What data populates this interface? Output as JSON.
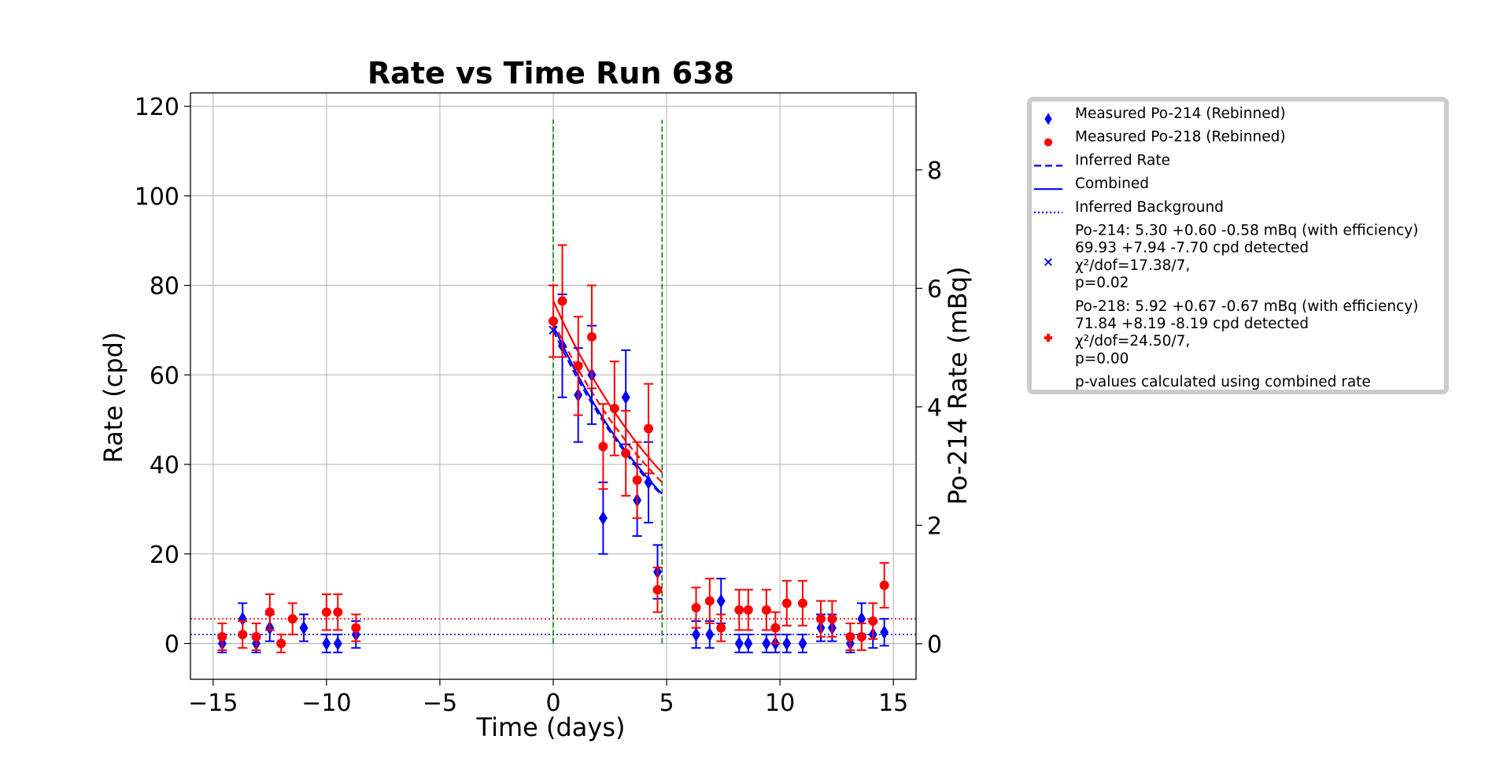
{
  "chart_data": {
    "type": "scatter",
    "title": "Rate vs Time Run 638",
    "xlabel": "Time (days)",
    "ylabel": "Rate (cpd)",
    "y2label": "Po-214 Rate (mBq)",
    "xlim": [
      -16,
      16
    ],
    "ylim": [
      -8,
      123
    ],
    "y2lim": [
      -0.6,
      9.3
    ],
    "xticks": [
      -15,
      -10,
      -5,
      0,
      5,
      10,
      15
    ],
    "xtick_labels": [
      "−15",
      "−10",
      "−5",
      "0",
      "5",
      "10",
      "15"
    ],
    "yticks": [
      0,
      20,
      40,
      60,
      80,
      100,
      120
    ],
    "ytick_labels": [
      "0",
      "20",
      "40",
      "60",
      "80",
      "100",
      "120"
    ],
    "y2ticks": [
      0,
      2,
      4,
      6,
      8
    ],
    "y2tick_labels": [
      "0",
      "2",
      "4",
      "6",
      "8"
    ],
    "grid": true,
    "legend_position": "outside-right",
    "colors": {
      "po214": "#0000ff",
      "po218": "#ff0000",
      "vline": "#008000",
      "grid": "#b0b0b0"
    },
    "vlines": [
      0,
      4.8
    ],
    "vline_range": [
      0,
      117
    ],
    "series": [
      {
        "name": "Measured Po-214 (Rebinned)",
        "color": "#0000ff",
        "marker": "diamond",
        "points": [
          {
            "x": -14.6,
            "y": 0,
            "err": 2
          },
          {
            "x": -13.7,
            "y": 5.5,
            "err": 3.5
          },
          {
            "x": -13.1,
            "y": 0,
            "err": 2
          },
          {
            "x": -12.5,
            "y": 3.5,
            "err": 3
          },
          {
            "x": -11.0,
            "y": 3.5,
            "err": 3
          },
          {
            "x": -10.0,
            "y": 0,
            "err": 2
          },
          {
            "x": -9.5,
            "y": 0,
            "err": 2
          },
          {
            "x": -8.7,
            "y": 2,
            "err": 3
          },
          {
            "x": 0.4,
            "y": 66.5,
            "err": 11.5
          },
          {
            "x": 1.1,
            "y": 55.5,
            "err": 10.5
          },
          {
            "x": 1.7,
            "y": 60,
            "err": 11
          },
          {
            "x": 2.2,
            "y": 28,
            "err": 8
          },
          {
            "x": 3.2,
            "y": 55,
            "err": 10.5
          },
          {
            "x": 3.7,
            "y": 32,
            "err": 8
          },
          {
            "x": 4.2,
            "y": 36,
            "err": 9
          },
          {
            "x": 4.6,
            "y": 16,
            "err": 6
          },
          {
            "x": 6.3,
            "y": 2,
            "err": 3
          },
          {
            "x": 6.9,
            "y": 2,
            "err": 3
          },
          {
            "x": 7.4,
            "y": 9.5,
            "err": 5
          },
          {
            "x": 8.2,
            "y": 0,
            "err": 2
          },
          {
            "x": 8.6,
            "y": 0,
            "err": 2
          },
          {
            "x": 9.4,
            "y": 0,
            "err": 2
          },
          {
            "x": 9.8,
            "y": 0,
            "err": 2
          },
          {
            "x": 10.3,
            "y": 0,
            "err": 2
          },
          {
            "x": 11.0,
            "y": 0,
            "err": 2
          },
          {
            "x": 11.8,
            "y": 3.5,
            "err": 3
          },
          {
            "x": 12.3,
            "y": 3.5,
            "err": 3
          },
          {
            "x": 13.1,
            "y": 0,
            "err": 2
          },
          {
            "x": 13.6,
            "y": 5.5,
            "err": 3.5
          },
          {
            "x": 14.1,
            "y": 2,
            "err": 3
          },
          {
            "x": 14.6,
            "y": 2.5,
            "err": 3
          }
        ]
      },
      {
        "name": "Measured Po-218 (Rebinned)",
        "color": "#ff0000",
        "marker": "circle",
        "points": [
          {
            "x": -14.6,
            "y": 1.5,
            "err": 3
          },
          {
            "x": -13.7,
            "y": 2,
            "err": 3
          },
          {
            "x": -13.1,
            "y": 1.5,
            "err": 3
          },
          {
            "x": -12.5,
            "y": 7,
            "err": 4
          },
          {
            "x": -12.0,
            "y": 0,
            "err": 2
          },
          {
            "x": -11.5,
            "y": 5.5,
            "err": 3.5
          },
          {
            "x": -10.0,
            "y": 7,
            "err": 4
          },
          {
            "x": -9.5,
            "y": 7,
            "err": 4
          },
          {
            "x": -8.7,
            "y": 3.5,
            "err": 3
          },
          {
            "x": 0.0,
            "y": 72,
            "err": 8
          },
          {
            "x": 0.4,
            "y": 76.5,
            "err": 12.5
          },
          {
            "x": 1.1,
            "y": 62,
            "err": 11
          },
          {
            "x": 1.7,
            "y": 68.5,
            "err": 11.5
          },
          {
            "x": 2.2,
            "y": 44,
            "err": 9.5
          },
          {
            "x": 2.7,
            "y": 52.5,
            "err": 10.5
          },
          {
            "x": 3.2,
            "y": 42.5,
            "err": 9.5
          },
          {
            "x": 3.7,
            "y": 36.5,
            "err": 8.5
          },
          {
            "x": 4.2,
            "y": 48,
            "err": 10
          },
          {
            "x": 4.6,
            "y": 12,
            "err": 5
          },
          {
            "x": 6.3,
            "y": 8,
            "err": 4.5
          },
          {
            "x": 6.9,
            "y": 9.5,
            "err": 5
          },
          {
            "x": 7.4,
            "y": 3.5,
            "err": 3
          },
          {
            "x": 8.2,
            "y": 7.5,
            "err": 4.5
          },
          {
            "x": 8.6,
            "y": 7.5,
            "err": 4.5
          },
          {
            "x": 9.4,
            "y": 7.5,
            "err": 4.5
          },
          {
            "x": 9.8,
            "y": 3.5,
            "err": 3.5
          },
          {
            "x": 10.3,
            "y": 9,
            "err": 5
          },
          {
            "x": 11.0,
            "y": 9,
            "err": 5
          },
          {
            "x": 11.8,
            "y": 5.5,
            "err": 4
          },
          {
            "x": 12.3,
            "y": 5.5,
            "err": 4
          },
          {
            "x": 13.1,
            "y": 1.5,
            "err": 3
          },
          {
            "x": 13.6,
            "y": 1.5,
            "err": 3
          },
          {
            "x": 14.1,
            "y": 5,
            "err": 4
          },
          {
            "x": 14.6,
            "y": 13,
            "err": 5
          }
        ]
      }
    ],
    "fits": [
      {
        "name": "Inferred Rate",
        "series": "Po-214",
        "color": "#0000ff",
        "style": "dashed",
        "x": [
          0,
          0.5,
          1,
          1.5,
          2,
          2.5,
          3,
          3.5,
          4,
          4.5,
          4.8
        ],
        "y": [
          69.9,
          64.7,
          59.8,
          55.3,
          51.2,
          47.3,
          43.8,
          40.5,
          37.4,
          34.6,
          33.1
        ]
      },
      {
        "name": "Combined",
        "series": "Po-214",
        "color": "#0000ff",
        "style": "solid",
        "x": [
          0,
          0.5,
          1,
          1.5,
          2,
          2.5,
          3,
          3.5,
          4,
          4.5,
          4.8
        ],
        "y": [
          71,
          65.7,
          60.7,
          56.1,
          51.9,
          47.9,
          44.3,
          41,
          37.9,
          35,
          33.4
        ]
      },
      {
        "name": "Inferred Rate",
        "series": "Po-218",
        "color": "#ff0000",
        "style": "dashed",
        "x": [
          0,
          0.5,
          1,
          1.5,
          2,
          2.5,
          3,
          3.5,
          4,
          4.5,
          4.8
        ],
        "y": [
          71.8,
          66.8,
          62.1,
          57.8,
          53.8,
          50,
          46.6,
          43.3,
          40.3,
          37.5,
          36
        ]
      },
      {
        "name": "Combined",
        "series": "Po-218",
        "color": "#ff0000",
        "style": "solid",
        "x": [
          0,
          0.5,
          1,
          1.5,
          2,
          2.5,
          3,
          3.5,
          4,
          4.5,
          4.8
        ],
        "y": [
          76.5,
          71.1,
          66.1,
          61.5,
          57.2,
          53.2,
          49.5,
          46,
          42.8,
          39.8,
          38.2
        ]
      }
    ],
    "backgrounds": [
      {
        "series": "Po-214",
        "color": "#0000ff",
        "style": "dotted",
        "y": 2
      },
      {
        "series": "Po-218",
        "color": "#ff0000",
        "style": "dotted",
        "y": 5.5
      }
    ],
    "fit_markers": [
      {
        "series": "Po-214",
        "color": "#0000ff",
        "marker": "x",
        "x": 0,
        "y": 70
      },
      {
        "series": "Po-218",
        "color": "#ff0000",
        "marker": "plus",
        "x": 0,
        "y": 72
      }
    ],
    "legend": [
      {
        "kind": "diamond",
        "color": "#0000ff",
        "lines": [
          "Measured Po-214 (Rebinned)"
        ]
      },
      {
        "kind": "circle",
        "color": "#ff0000",
        "lines": [
          "Measured Po-218 (Rebinned)"
        ]
      },
      {
        "kind": "dashed",
        "color": "#0000ff",
        "lines": [
          "Inferred Rate"
        ]
      },
      {
        "kind": "solid",
        "color": "#0000ff",
        "lines": [
          "Combined"
        ]
      },
      {
        "kind": "dotted",
        "color": "#0000ff",
        "lines": [
          "Inferred Background"
        ]
      },
      {
        "kind": "x",
        "color": "#0000ff",
        "lines": [
          "Po-214: 5.30 +0.60 -0.58 mBq (with efficiency)",
          " 69.93 +7.94 -7.70 cpd detected",
          "χ²/dof=17.38/7,",
          "p=0.02"
        ]
      },
      {
        "kind": "plus",
        "color": "#ff0000",
        "lines": [
          "Po-218: 5.92 +0.67 -0.67 mBq (with efficiency)",
          " 71.84 +8.19 -8.19 cpd detected",
          "χ²/dof=24.50/7,",
          "p=0.00"
        ]
      },
      {
        "kind": "none",
        "color": "#000000",
        "lines": [
          "p-values calculated using combined rate"
        ]
      }
    ]
  }
}
